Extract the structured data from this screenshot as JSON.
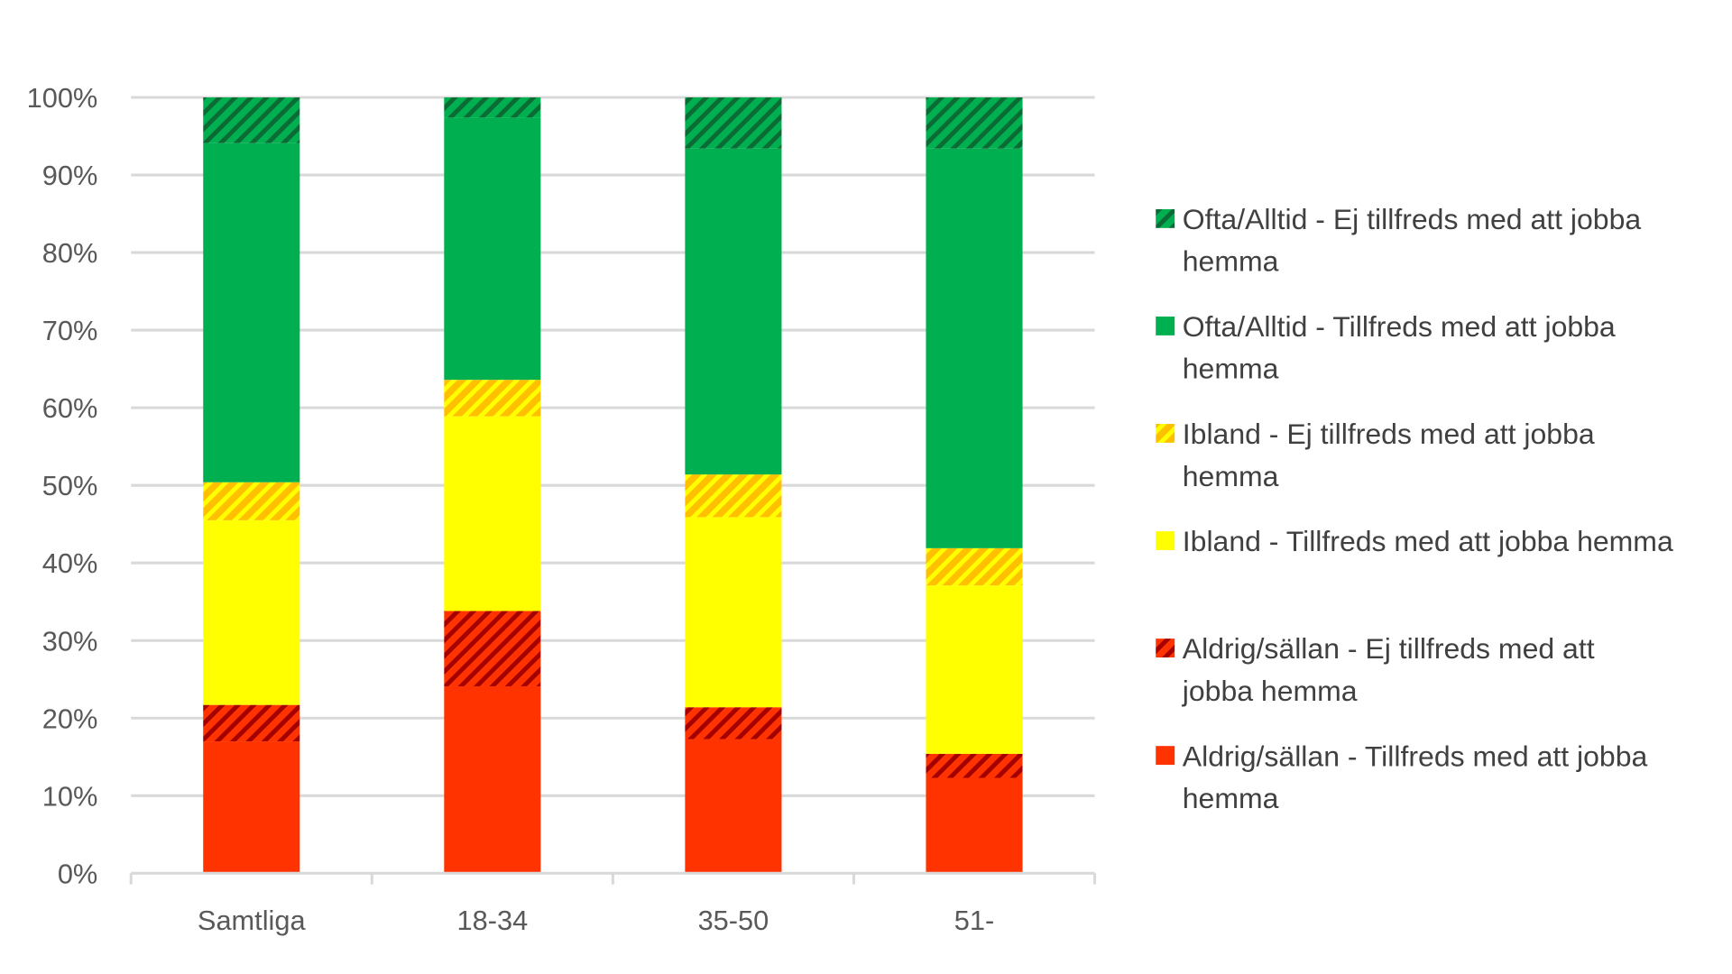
{
  "chart_data": {
    "type": "bar",
    "stacked": true,
    "categories": [
      "Samtliga",
      "18-34",
      "35-50",
      "51-"
    ],
    "ylim": [
      0,
      100
    ],
    "yticks": [
      "0%",
      "10%",
      "20%",
      "30%",
      "40%",
      "50%",
      "60%",
      "70%",
      "80%",
      "90%",
      "100%"
    ],
    "grid": true,
    "legend_position": "right",
    "series": [
      {
        "name": "Aldrig/sällan - Tillfreds med att jobba hemma",
        "color": "#FF3300",
        "hatched": false,
        "values": [
          17.0,
          24.1,
          17.3,
          12.3
        ]
      },
      {
        "name": "Aldrig/sällan - Ej tillfreds med att jobba hemma",
        "color": "#FF3300",
        "stripe": "#A50000",
        "hatched": true,
        "values": [
          4.7,
          9.7,
          4.1,
          3.1
        ]
      },
      {
        "name": "Ibland - Tillfreds med att jobba hemma",
        "color": "#FFFF00",
        "hatched": false,
        "values": [
          23.8,
          25.1,
          24.5,
          21.7
        ]
      },
      {
        "name": "Ibland - Ej tillfreds med att jobba hemma",
        "color": "#FFC000",
        "stripe": "#FFFF00",
        "hatched": true,
        "values": [
          4.9,
          4.7,
          5.5,
          4.8
        ]
      },
      {
        "name": "Ofta/Alltid - Tillfreds med att jobba hemma",
        "color": "#00B050",
        "hatched": false,
        "values": [
          43.7,
          33.8,
          42.0,
          51.5
        ]
      },
      {
        "name": "Ofta/Alltid - Ej tillfreds med att jobba hemma",
        "color": "#00B050",
        "stripe": "#0B6B34",
        "hatched": true,
        "values": [
          5.9,
          2.6,
          6.6,
          6.6
        ]
      }
    ]
  }
}
